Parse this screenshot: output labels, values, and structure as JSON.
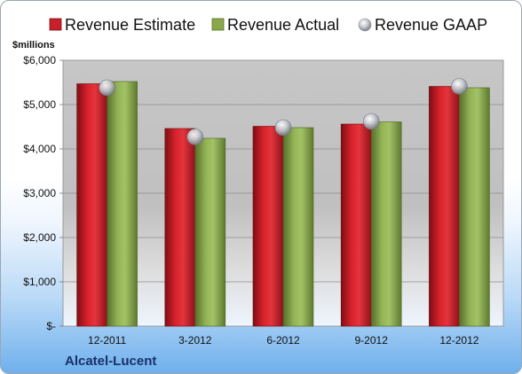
{
  "chart_data": {
    "type": "bar",
    "unit_label": "$millions",
    "company": "Alcatel-Lucent",
    "categories": [
      "12-2011",
      "3-2012",
      "6-2012",
      "9-2012",
      "12-2012"
    ],
    "series": [
      {
        "name": "Revenue Estimate",
        "type": "bar",
        "color": "#c8202a",
        "values": [
          5470,
          4460,
          4510,
          4560,
          5410
        ]
      },
      {
        "name": "Revenue Actual",
        "type": "bar",
        "color": "#8aa84a",
        "values": [
          5520,
          4240,
          4480,
          4610,
          5380
        ]
      },
      {
        "name": "Revenue GAAP",
        "type": "scatter",
        "color": "#b9bcc4",
        "values": [
          5380,
          4270,
          4480,
          4620,
          5410
        ]
      }
    ],
    "yticks": [
      0,
      1000,
      2000,
      3000,
      4000,
      5000,
      6000
    ],
    "ytick_labels": [
      "$-",
      "$1,000",
      "$2,000",
      "$3,000",
      "$4,000",
      "$5,000",
      "$6,000"
    ],
    "ylim": [
      0,
      6000
    ],
    "grid": true,
    "legend_position": "top"
  }
}
